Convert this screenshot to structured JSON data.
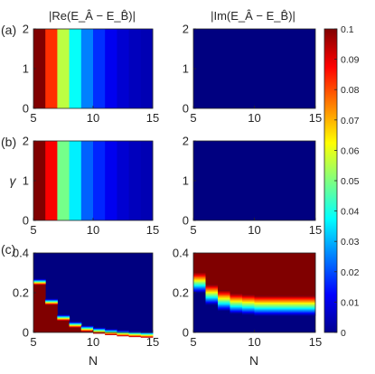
{
  "figure": {
    "col_titles": [
      "|Re(E_Â − E_B̂)|",
      "|Im(E_Â − E_B̂)|"
    ],
    "row_labels": [
      "(a)",
      "(b)",
      "(c)"
    ],
    "ylabel": "γ",
    "xlabel": "N"
  },
  "chart_data": [
    {
      "type": "heatmap",
      "panel": "(a) left",
      "title": "|Re(E_Â − E_B̂)|",
      "x": [
        5,
        6,
        7,
        8,
        9,
        10,
        11,
        12,
        13,
        14,
        15
      ],
      "xlim": [
        5,
        15
      ],
      "ylim": [
        0,
        2
      ],
      "xticks": [
        5,
        10,
        15
      ],
      "yticks": [
        0,
        1,
        2
      ],
      "column_values": [
        0.1,
        0.083,
        0.056,
        0.038,
        0.025,
        0.017,
        0.011,
        0.008,
        0.006,
        0.005
      ],
      "colormap": "jet",
      "clim": [
        0,
        0.1
      ]
    },
    {
      "type": "heatmap",
      "panel": "(a) right",
      "title": "|Im(E_Â − E_B̂)|",
      "xlim": [
        5,
        15
      ],
      "ylim": [
        0,
        2
      ],
      "xticks": [
        5,
        10,
        15
      ],
      "yticks": [
        0,
        1,
        2
      ],
      "uniform_value": 0,
      "colormap": "jet",
      "clim": [
        0,
        0.1
      ]
    },
    {
      "type": "heatmap",
      "panel": "(b) left",
      "xlim": [
        5,
        15
      ],
      "ylim": [
        0,
        2
      ],
      "xticks": [
        5,
        10,
        15
      ],
      "yticks": [
        0,
        1,
        2
      ],
      "column_values": [
        0.1,
        0.088,
        0.049,
        0.036,
        0.022,
        0.016,
        0.011,
        0.008,
        0.006,
        0.005
      ],
      "colormap": "jet",
      "clim": [
        0,
        0.1
      ]
    },
    {
      "type": "heatmap",
      "panel": "(b) right",
      "xlim": [
        5,
        15
      ],
      "ylim": [
        0,
        2
      ],
      "xticks": [
        5,
        10,
        15
      ],
      "yticks": [
        0,
        1,
        2
      ],
      "uniform_value": 0,
      "colormap": "jet",
      "clim": [
        0,
        0.1
      ]
    },
    {
      "type": "heatmap",
      "panel": "(c) left",
      "xlim": [
        5,
        15
      ],
      "ylim": [
        0,
        0.4
      ],
      "xticks": [
        5,
        10,
        15
      ],
      "yticks": [
        0,
        0.2,
        0.4
      ],
      "description_of_pattern": "red below per-column threshold, blue above",
      "column_thresholds": [
        0.27,
        0.17,
        0.09,
        0.055,
        0.035,
        0.025,
        0.018,
        0.012,
        0.008,
        0.005
      ],
      "colormap": "jet",
      "clim": [
        0,
        0.1
      ]
    },
    {
      "type": "heatmap",
      "panel": "(c) right",
      "xlim": [
        5,
        15
      ],
      "ylim": [
        0,
        0.4
      ],
      "xticks": [
        5,
        10,
        15
      ],
      "yticks": [
        0,
        0.2,
        0.4
      ],
      "column_thresholds": [
        0.3,
        0.24,
        0.21,
        0.195,
        0.19,
        0.185,
        0.185,
        0.185,
        0.185,
        0.185
      ],
      "colormap": "jet",
      "clim": [
        0,
        0.1
      ]
    },
    {
      "type": "colorbar",
      "ticks": [
        "0",
        "0.01",
        "0.02",
        "0.03",
        "0.04",
        "0.05",
        "0.06",
        "0.07",
        "0.08",
        "0.09",
        "0.1"
      ],
      "range": [
        0,
        0.1
      ],
      "colormap": "jet"
    }
  ]
}
